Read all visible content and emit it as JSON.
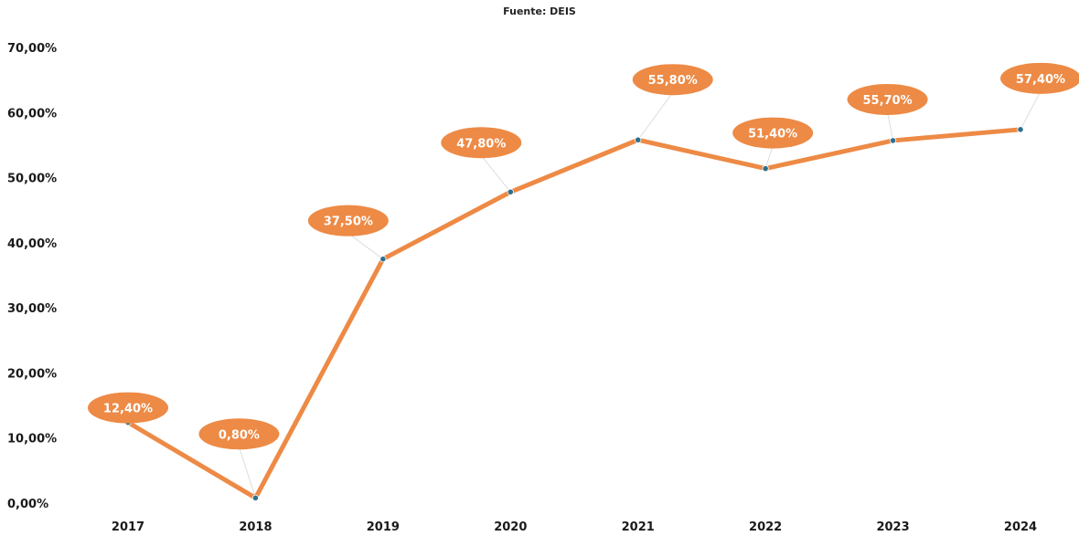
{
  "subtitle": "Fuente: DEIS",
  "colors": {
    "line": "#ED8A45",
    "bubble": "#ED8A45",
    "marker": "#2E6F8E",
    "leader": "#DDDDDD",
    "text": "#1A1A1A"
  },
  "chart_data": {
    "type": "line",
    "title": "",
    "subtitle": "Fuente: DEIS",
    "xlabel": "",
    "ylabel": "",
    "categories": [
      "2017",
      "2018",
      "2019",
      "2020",
      "2021",
      "2022",
      "2023",
      "2024"
    ],
    "series": [
      {
        "values": [
          12.4,
          0.8,
          37.5,
          47.8,
          55.8,
          51.4,
          55.7,
          57.4
        ]
      }
    ],
    "data_labels": [
      "12,40%",
      "0,80%",
      "37,50%",
      "47,80%",
      "55,80%",
      "51,40%",
      "55,70%",
      "57,40%"
    ],
    "y_ticks": [
      0,
      10,
      20,
      30,
      40,
      50,
      60,
      70
    ],
    "y_tick_labels": [
      "0,00%",
      "10,00%",
      "20,00%",
      "30,00%",
      "40,00%",
      "50,00%",
      "60,00%",
      "70,00%"
    ],
    "ylim": [
      0,
      70
    ],
    "grid": false,
    "legend": "none"
  }
}
